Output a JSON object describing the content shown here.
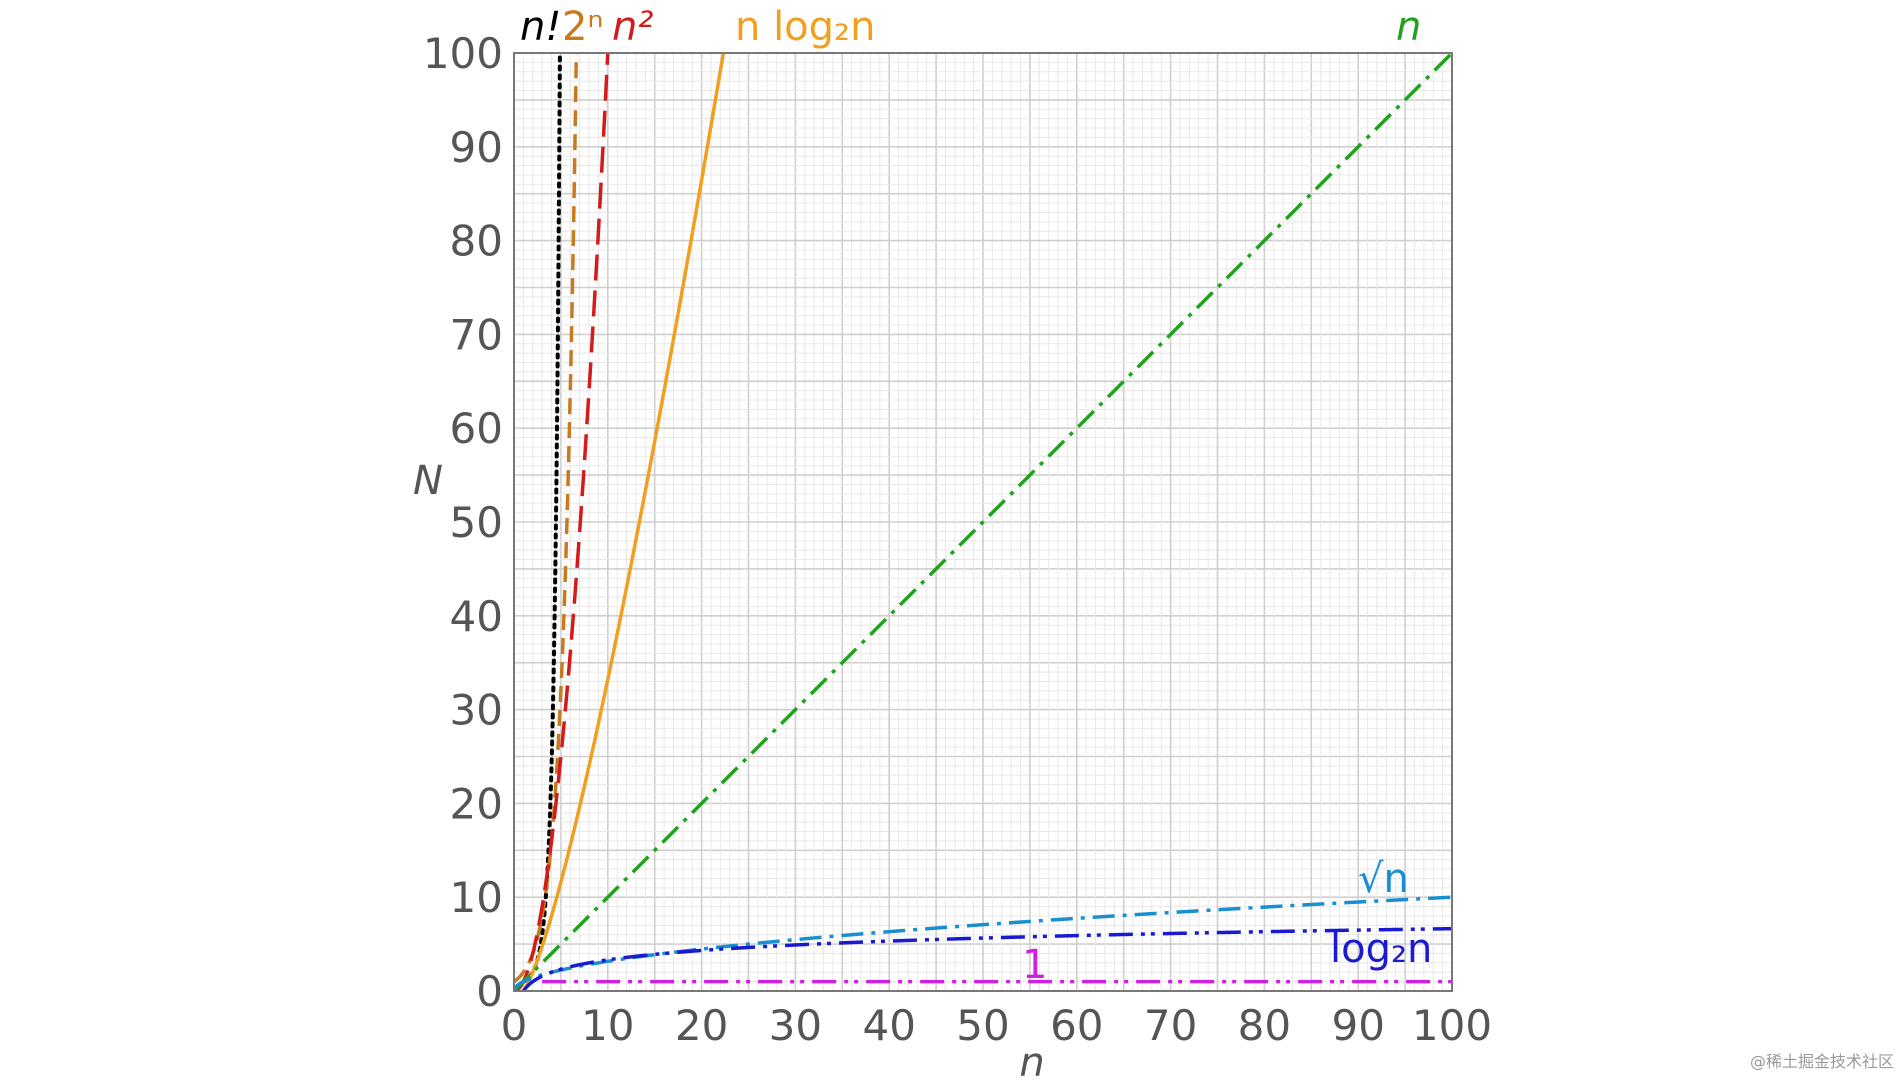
{
  "watermark": "@稀土掘金技术社区",
  "chart_data": {
    "type": "line",
    "title": "",
    "xlabel": "n",
    "ylabel": "N",
    "xlim": [
      0,
      100
    ],
    "ylim": [
      0,
      100
    ],
    "grid": {
      "major_step": 5,
      "minor_step": 1
    },
    "xticks": [
      0,
      10,
      20,
      30,
      40,
      50,
      60,
      70,
      80,
      90,
      100
    ],
    "yticks": [
      0,
      10,
      20,
      30,
      40,
      50,
      60,
      70,
      80,
      90,
      100
    ],
    "series": [
      {
        "name": "n!",
        "label": "n!",
        "color": "#000000",
        "style": "dotted",
        "fn": "factorial",
        "x": [
          1,
          2,
          3,
          4,
          5
        ],
        "values": [
          1,
          2,
          6,
          24,
          120
        ]
      },
      {
        "name": "2^n",
        "label": "2ⁿ",
        "color": "#c87a1e",
        "style": "dashed",
        "fn": "exp2",
        "x": [
          0,
          2,
          4,
          6,
          6.64
        ],
        "values": [
          1,
          4,
          16,
          64,
          100
        ]
      },
      {
        "name": "n^2",
        "label": "n²",
        "color": "#d41b1b",
        "style": "longdash",
        "fn": "square",
        "x": [
          0,
          2,
          4,
          6,
          8,
          10
        ],
        "values": [
          0,
          4,
          16,
          36,
          64,
          100
        ]
      },
      {
        "name": "n log2 n",
        "label": "n log₂n",
        "color": "#f0a020",
        "style": "solid",
        "fn": "nlogn",
        "x": [
          1,
          5,
          10,
          15,
          20,
          22.4
        ],
        "values": [
          0,
          11.6,
          33.2,
          58.6,
          86.4,
          100
        ]
      },
      {
        "name": "n",
        "label": "n",
        "color": "#22a01e",
        "style": "dashdot",
        "fn": "linear",
        "x": [
          0,
          50,
          100
        ],
        "values": [
          0,
          50,
          100
        ]
      },
      {
        "name": "sqrt n",
        "label": "√n",
        "color": "#1a8fd0",
        "style": "dashdot",
        "fn": "sqrt",
        "x": [
          0,
          25,
          50,
          75,
          100
        ],
        "values": [
          0,
          5,
          7.07,
          8.66,
          10
        ]
      },
      {
        "name": "log2 n",
        "label": "log₂n",
        "color": "#1a1ad0",
        "style": "dashdotdot",
        "fn": "log2",
        "x": [
          1,
          10,
          25,
          50,
          100
        ],
        "values": [
          0,
          3.32,
          4.64,
          5.64,
          6.64
        ]
      },
      {
        "name": "1",
        "label": "1",
        "color": "#cc22dd",
        "style": "dashdotdot",
        "fn": "const",
        "x": [
          0,
          100
        ],
        "values": [
          1,
          1
        ]
      }
    ]
  }
}
